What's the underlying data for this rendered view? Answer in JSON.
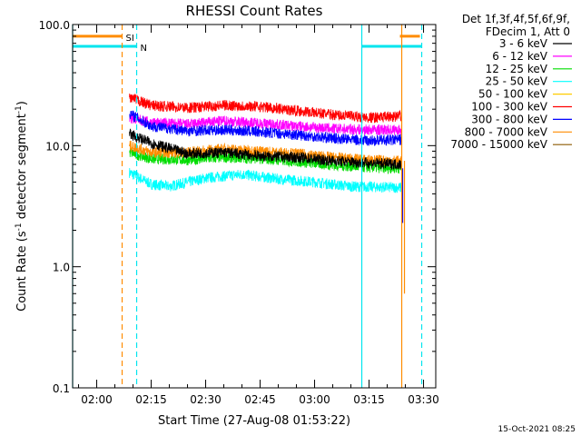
{
  "chart_data": {
    "type": "line",
    "title": "RHESSI Count Rates",
    "xlabel": "Start Time (27-Aug-08 01:53:22)",
    "ylabel": "Count Rate (s",
    "ylabel_sup": "-1",
    "ylabel_rest": " detector segment",
    "ylabel_sup2": "-1",
    "ylabel_end": ")",
    "yscale": "log",
    "ylim": [
      0.1,
      100
    ],
    "xlim": [
      "01:53:22",
      "03:33:22"
    ],
    "x_ticks": [
      "02:00",
      "02:15",
      "02:30",
      "02:45",
      "03:00",
      "03:15",
      "03:30"
    ],
    "y_ticks": [
      "0.1",
      "1.0",
      "10.0",
      "100.0"
    ],
    "legend_header": [
      "Det 1f,3f,4f,5f,6f,9f,",
      "FDecim 1, Att 0"
    ],
    "legend_position": "right",
    "timestamp": "15-Oct-2021 08:25",
    "flags": [
      {
        "label": "SI",
        "color": "#ff8c00",
        "level": 80,
        "intervals": [
          [
            "01:53:22",
            "02:07:00"
          ],
          [
            "03:23:30",
            "03:29:00"
          ]
        ]
      },
      {
        "label": "N",
        "color": "#00e5ee",
        "level": 66,
        "intervals": [
          [
            "01:53:22",
            "02:11:00"
          ],
          [
            "03:13:00",
            "03:29:30"
          ]
        ]
      }
    ],
    "markers": [
      {
        "color": "#00e5ee",
        "style": "solid",
        "time": "01:53:22"
      },
      {
        "color": "#ff8c00",
        "style": "dashed",
        "time": "02:07:00"
      },
      {
        "color": "#00e5ee",
        "style": "dashed",
        "time": "02:11:00"
      },
      {
        "color": "#00e5ee",
        "style": "solid",
        "time": "03:13:00"
      },
      {
        "color": "#ff8c00",
        "style": "solid",
        "time": "03:24:00"
      },
      {
        "color": "#00e5ee",
        "style": "dashed",
        "time": "03:29:30"
      }
    ],
    "series": [
      {
        "name": "3 - 6 keV",
        "color": "#000000",
        "points": [
          [
            "02:09",
            12.5
          ],
          [
            "02:15",
            10.5
          ],
          [
            "02:25",
            8.6
          ],
          [
            "02:35",
            8.8
          ],
          [
            "02:45",
            8.2
          ],
          [
            "02:55",
            8.0
          ],
          [
            "03:05",
            7.5
          ],
          [
            "03:15",
            7.2
          ],
          [
            "03:24",
            7.0
          ]
        ]
      },
      {
        "name": "6 - 12 keV",
        "color": "#ff00ff",
        "points": [
          [
            "02:09",
            17.0
          ],
          [
            "02:15",
            15.5
          ],
          [
            "02:25",
            15.0
          ],
          [
            "02:35",
            16.0
          ],
          [
            "02:45",
            15.3
          ],
          [
            "02:55",
            14.5
          ],
          [
            "03:05",
            13.8
          ],
          [
            "03:15",
            13.5
          ],
          [
            "03:24",
            13.5
          ]
        ]
      },
      {
        "name": "12 - 25 keV",
        "color": "#00dd00",
        "points": [
          [
            "02:09",
            8.8
          ],
          [
            "02:15",
            7.8
          ],
          [
            "02:25",
            7.6
          ],
          [
            "02:35",
            8.0
          ],
          [
            "02:45",
            7.8
          ],
          [
            "02:55",
            7.4
          ],
          [
            "03:05",
            6.9
          ],
          [
            "03:15",
            6.6
          ],
          [
            "03:24",
            6.5
          ]
        ]
      },
      {
        "name": "25 - 50 keV",
        "color": "#00ffff",
        "points": [
          [
            "02:09",
            6.0
          ],
          [
            "02:15",
            4.8
          ],
          [
            "02:20",
            4.6
          ],
          [
            "02:30",
            5.4
          ],
          [
            "02:40",
            5.8
          ],
          [
            "02:50",
            5.3
          ],
          [
            "03:00",
            5.0
          ],
          [
            "03:10",
            4.6
          ],
          [
            "03:24",
            4.5
          ]
        ]
      },
      {
        "name": "50 - 100 keV",
        "color": "#ffcc00",
        "points": []
      },
      {
        "name": "100 - 300 keV",
        "color": "#ff0000",
        "points": [
          [
            "02:09",
            25.0
          ],
          [
            "02:15",
            21.5
          ],
          [
            "02:25",
            20.5
          ],
          [
            "02:35",
            21.5
          ],
          [
            "02:45",
            21.0
          ],
          [
            "02:55",
            19.5
          ],
          [
            "03:05",
            18.0
          ],
          [
            "03:15",
            17.0
          ],
          [
            "03:24",
            17.5
          ]
        ]
      },
      {
        "name": "300 - 800 keV",
        "color": "#0000ff",
        "points": [
          [
            "02:09",
            18.5
          ],
          [
            "02:15",
            14.5
          ],
          [
            "02:25",
            13.2
          ],
          [
            "02:35",
            13.5
          ],
          [
            "02:45",
            13.0
          ],
          [
            "02:55",
            12.3
          ],
          [
            "03:05",
            11.5
          ],
          [
            "03:15",
            11.0
          ],
          [
            "03:24",
            11.2
          ]
        ]
      },
      {
        "name": "800 - 7000 keV",
        "color": "#ff8c00",
        "points": [
          [
            "02:09",
            10.0
          ],
          [
            "02:15",
            8.8
          ],
          [
            "02:25",
            8.8
          ],
          [
            "02:35",
            9.4
          ],
          [
            "02:45",
            9.0
          ],
          [
            "02:55",
            8.6
          ],
          [
            "03:05",
            8.0
          ],
          [
            "03:15",
            7.6
          ],
          [
            "03:24",
            7.5
          ]
        ]
      },
      {
        "name": "7000 - 15000 keV",
        "color": "#8b5a00",
        "points": []
      }
    ]
  }
}
